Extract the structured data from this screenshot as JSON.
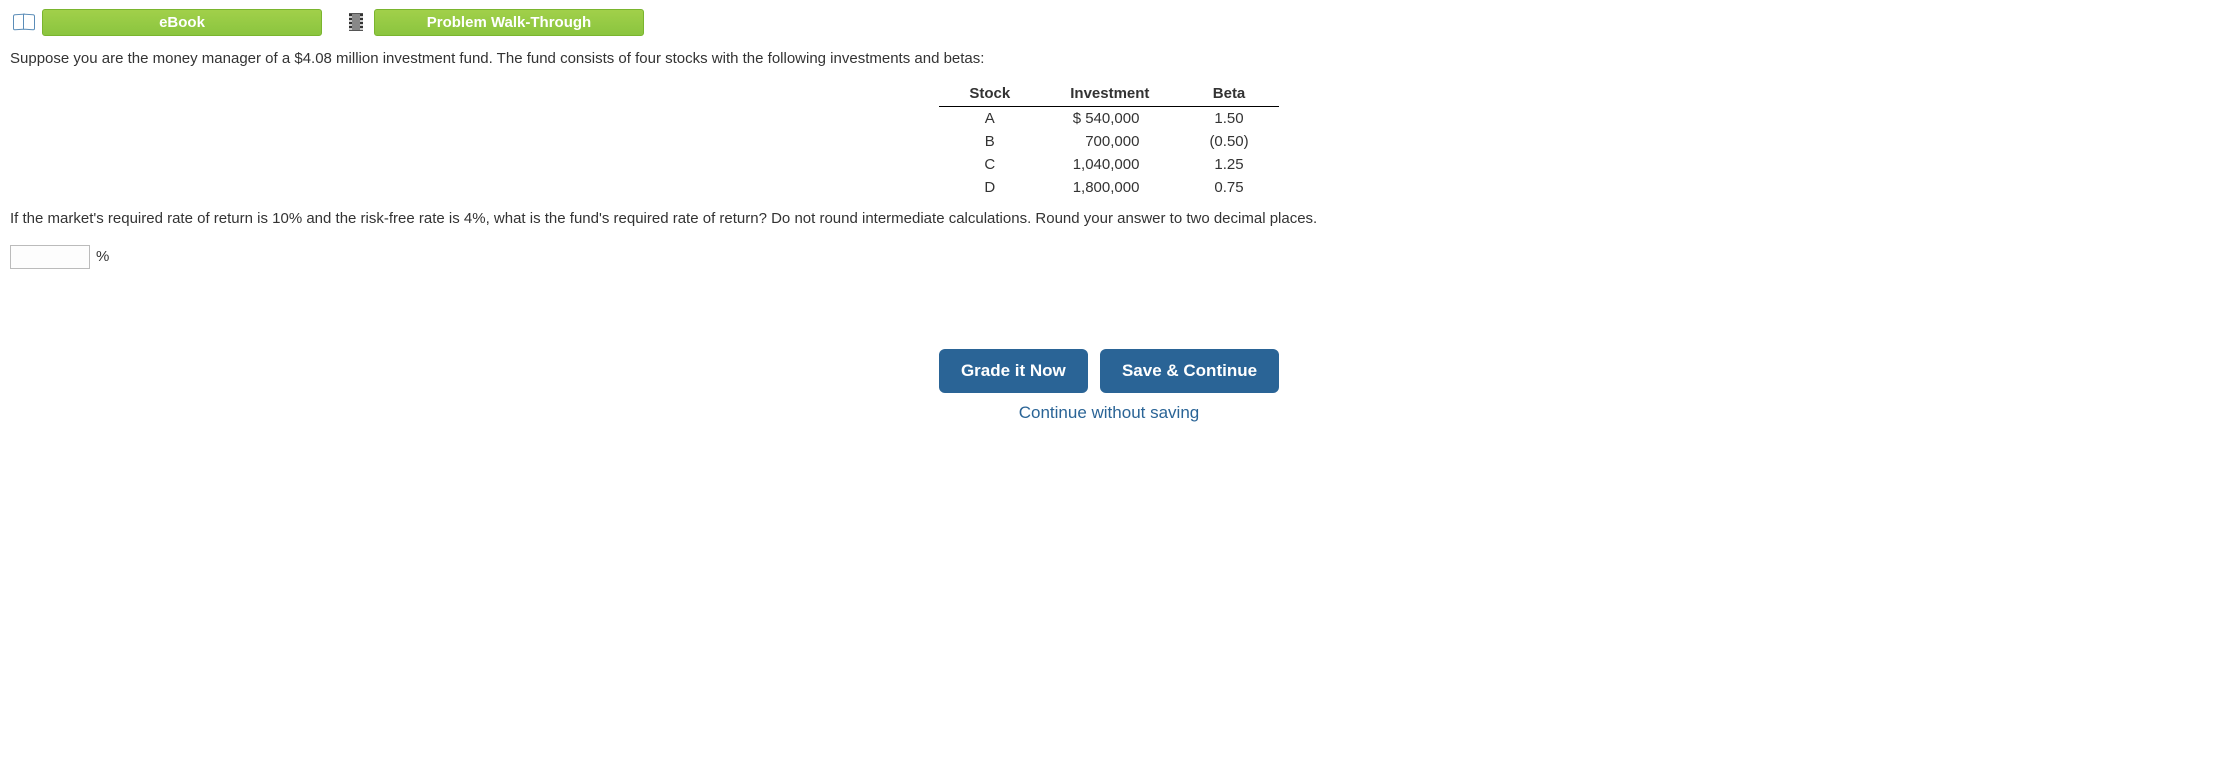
{
  "top_buttons": {
    "ebook": "eBook",
    "walkthrough": "Problem Walk-Through"
  },
  "intro_text": "Suppose you are the money manager of a $4.08 million investment fund. The fund consists of four stocks with the following investments and betas:",
  "table": {
    "headers": {
      "stock": "Stock",
      "investment": "Investment",
      "beta": "Beta"
    },
    "rows": [
      {
        "stock": "A",
        "investment": "$   540,000",
        "beta": "1.50"
      },
      {
        "stock": "B",
        "investment": "700,000",
        "beta": "(0.50)"
      },
      {
        "stock": "C",
        "investment": "1,040,000",
        "beta": "1.25"
      },
      {
        "stock": "D",
        "investment": "1,800,000",
        "beta": "0.75"
      }
    ]
  },
  "question_text": "If the market's required rate of return is 10% and the risk-free rate is 4%, what is the fund's required rate of return? Do not round intermediate calculations. Round your answer to two decimal places.",
  "answer_suffix": "%",
  "bottom": {
    "grade": "Grade it Now",
    "save": "Save & Continue",
    "continue": "Continue without saving"
  }
}
